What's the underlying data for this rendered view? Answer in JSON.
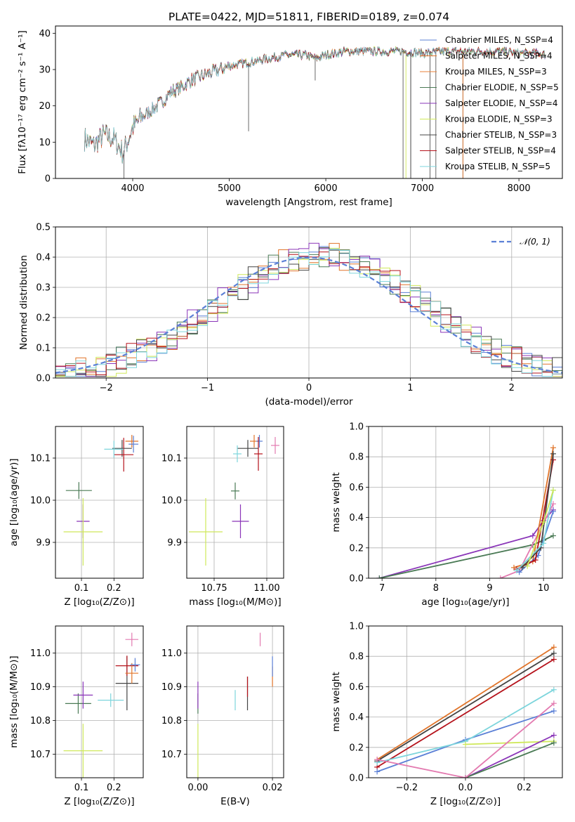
{
  "title": "PLATE=0422, MJD=51811, FIBERID=0189, z=0.074",
  "colors": {
    "chabrier_miles": "#5b80d6",
    "salpeter_miles": "#e0742a",
    "kroupa_miles": "#e8823a",
    "chabrier_elodie": "#4a7a55",
    "salpeter_elodie": "#8a35b8",
    "kroupa_elodie": "#cfe85a",
    "chabrier_stelib": "#444444",
    "salpeter_stelib": "#b5121b",
    "kroupa_stelib": "#7dd5dc",
    "extra_pink": "#e37ab0",
    "normal_curve": "#5b80d6"
  },
  "chart_data": [
    {
      "id": "spectrum",
      "type": "line",
      "title": "PLATE=0422, MJD=51811, FIBERID=0189, z=0.074",
      "xlabel": "wavelength [Angstrom, rest frame]",
      "ylabel": "Flux [fλ10⁻¹⁷ erg cm⁻² s⁻¹ A⁻¹]",
      "xlim": [
        3200,
        8450
      ],
      "ylim": [
        0,
        42
      ],
      "xticks": [
        "4000",
        "5000",
        "6000",
        "7000",
        "8000"
      ],
      "yticks": [
        "0",
        "10",
        "20",
        "30",
        "40"
      ],
      "legend_position": "top-right",
      "legend": [
        "Chabrier MILES, N_SSP=4",
        "Salpeter MILES, N_SSP=4",
        "Kroupa MILES, N_SSP=3",
        "Chabrier ELODIE, N_SSP=5",
        "Salpeter ELODIE, N_SSP=4",
        "Kroupa ELODIE, N_SSP=3",
        "Chabrier STELIB, N_SSP=3",
        "Salpeter STELIB, N_SSP=4",
        "Kroupa STELIB, N_SSP=5"
      ],
      "continuum": [
        [
          3500,
          11
        ],
        [
          3600,
          9
        ],
        [
          3700,
          12
        ],
        [
          3800,
          11
        ],
        [
          3900,
          7
        ],
        [
          4000,
          14
        ],
        [
          4100,
          17
        ],
        [
          4200,
          19
        ],
        [
          4300,
          21
        ],
        [
          4400,
          24
        ],
        [
          4500,
          25
        ],
        [
          4600,
          27
        ],
        [
          4700,
          28
        ],
        [
          4800,
          29
        ],
        [
          4900,
          30
        ],
        [
          5000,
          31
        ],
        [
          5200,
          32
        ],
        [
          5400,
          33
        ],
        [
          5600,
          34
        ],
        [
          5800,
          34
        ],
        [
          5900,
          33
        ],
        [
          6000,
          34
        ],
        [
          6200,
          35
        ],
        [
          6400,
          35
        ],
        [
          6600,
          35
        ],
        [
          6800,
          35
        ],
        [
          7000,
          34.5
        ],
        [
          7200,
          35
        ],
        [
          7500,
          35
        ],
        [
          7800,
          35
        ],
        [
          8000,
          34.5
        ],
        [
          8200,
          34.5
        ],
        [
          8280,
          34
        ]
      ],
      "spikes": [
        {
          "x": 3910,
          "y": 0
        },
        {
          "x": 5200,
          "y": 13
        },
        {
          "x": 5890,
          "y": 27
        },
        {
          "x": 6800,
          "y": 0
        },
        {
          "x": 6880,
          "y": 0
        },
        {
          "x": 7080,
          "y": 0
        },
        {
          "x": 7140,
          "y": 0
        },
        {
          "x": 7420,
          "y": 0
        }
      ]
    },
    {
      "id": "residuals",
      "type": "line",
      "xlabel": "(data-model)/error",
      "ylabel": "Normed distribution",
      "xlim": [
        -2.5,
        2.5
      ],
      "ylim": [
        0,
        0.5
      ],
      "xticks": [
        "−2",
        "−1",
        "0",
        "1",
        "2"
      ],
      "yticks": [
        "0.0",
        "0.1",
        "0.2",
        "0.3",
        "0.4",
        "0.5"
      ],
      "grid": true,
      "legend_position": "top-right",
      "legend": [
        "𝒩(0, 1)"
      ],
      "bin_width": 0.1
    },
    {
      "id": "age_vs_Z",
      "type": "scatter",
      "xlabel": "Z [log₁₀(Z/Z⊙)]",
      "ylabel": "age  [log₁₀(age/yr)]",
      "xlim": [
        0.02,
        0.29
      ],
      "ylim": [
        9.815,
        10.175
      ],
      "xticks": [
        "0.1",
        "0.2"
      ],
      "yticks": [
        "9.9",
        "10.0",
        "10.1"
      ],
      "grid": true,
      "points": [
        {
          "series": "chabrier_elodie",
          "x": 0.092,
          "y": 10.023,
          "xerr": 0.04,
          "yerr": 0.02
        },
        {
          "series": "salpeter_elodie",
          "x": 0.105,
          "y": 9.95,
          "xerr": 0.02,
          "yerr": 0.04
        },
        {
          "series": "kroupa_elodie",
          "x": 0.105,
          "y": 9.925,
          "xerr": 0.06,
          "yerr": 0.08
        },
        {
          "series": "chabrier_stelib",
          "x": 0.225,
          "y": 10.123,
          "xerr": 0.03,
          "yerr": 0.02
        },
        {
          "series": "salpeter_stelib",
          "x": 0.23,
          "y": 10.108,
          "xerr": 0.03,
          "yerr": 0.04
        },
        {
          "series": "kroupa_stelib",
          "x": 0.2,
          "y": 10.121,
          "xerr": 0.03,
          "yerr": 0.02
        },
        {
          "series": "salpeter_miles",
          "x": 0.255,
          "y": 10.14,
          "xerr": 0.02,
          "yerr": 0.015
        },
        {
          "series": "chabrier_miles",
          "x": 0.26,
          "y": 10.133,
          "xerr": 0.015,
          "yerr": 0.02
        }
      ]
    },
    {
      "id": "age_vs_mass",
      "type": "scatter",
      "xlabel": "mass [log₁₀(M/M⊙)]",
      "ylabel": "",
      "xlim": [
        10.62,
        11.08
      ],
      "ylim": [
        9.815,
        10.175
      ],
      "xticks": [
        "10.75",
        "11.00"
      ],
      "yticks": [
        "9.9",
        "10.0",
        "10.1"
      ],
      "grid": true,
      "points": [
        {
          "series": "kroupa_elodie",
          "x": 10.71,
          "y": 9.925,
          "xerr": 0.08,
          "yerr": 0.08
        },
        {
          "series": "salpeter_elodie",
          "x": 10.875,
          "y": 9.95,
          "xerr": 0.04,
          "yerr": 0.04
        },
        {
          "series": "chabrier_elodie",
          "x": 10.85,
          "y": 10.022,
          "xerr": 0.02,
          "yerr": 0.02
        },
        {
          "series": "chabrier_stelib",
          "x": 10.91,
          "y": 10.123,
          "xerr": 0.05,
          "yerr": 0.02
        },
        {
          "series": "kroupa_stelib",
          "x": 10.86,
          "y": 10.11,
          "xerr": 0.02,
          "yerr": 0.02
        },
        {
          "series": "salpeter_miles",
          "x": 10.94,
          "y": 10.14,
          "xerr": 0.02,
          "yerr": 0.015
        },
        {
          "series": "chabrier_miles",
          "x": 10.965,
          "y": 10.14,
          "xerr": 0.015,
          "yerr": 0.015
        },
        {
          "series": "salpeter_stelib",
          "x": 10.96,
          "y": 10.11,
          "xerr": 0.02,
          "yerr": 0.04
        },
        {
          "series": "extra_pink",
          "x": 11.04,
          "y": 10.13,
          "xerr": 0.02,
          "yerr": 0.02
        }
      ]
    },
    {
      "id": "weight_vs_age",
      "type": "line",
      "xlabel": "age  [log₁₀(age/yr)]",
      "ylabel": "mass weight",
      "xlim": [
        6.75,
        10.35
      ],
      "ylim": [
        0,
        1.0
      ],
      "xticks": [
        "7",
        "8",
        "9",
        "10"
      ],
      "yticks": [
        "0.0",
        "0.2",
        "0.4",
        "0.6",
        "0.8",
        "1.0"
      ],
      "grid": true,
      "series": [
        {
          "name": "salpeter_elodie",
          "points": [
            [
              6.95,
              0.0
            ],
            [
              9.8,
              0.28
            ],
            [
              10.0,
              0.38
            ],
            [
              10.18,
              0.45
            ]
          ]
        },
        {
          "name": "chabrier_elodie",
          "points": [
            [
              6.95,
              0.0
            ],
            [
              9.8,
              0.22
            ],
            [
              10.0,
              0.25
            ],
            [
              10.18,
              0.28
            ]
          ]
        },
        {
          "name": "extra_pink",
          "points": [
            [
              9.2,
              0.0
            ],
            [
              9.55,
              0.05
            ],
            [
              10.18,
              0.49
            ]
          ]
        },
        {
          "name": "salpeter_miles",
          "points": [
            [
              9.45,
              0.07
            ],
            [
              9.8,
              0.11
            ],
            [
              10.18,
              0.86
            ]
          ]
        },
        {
          "name": "chabrier_miles",
          "points": [
            [
              9.55,
              0.04
            ],
            [
              9.9,
              0.15
            ],
            [
              10.18,
              0.44
            ]
          ]
        },
        {
          "name": "salpeter_stelib",
          "points": [
            [
              9.5,
              0.06
            ],
            [
              9.85,
              0.12
            ],
            [
              10.18,
              0.78
            ]
          ]
        },
        {
          "name": "chabrier_stelib",
          "points": [
            [
              9.6,
              0.07
            ],
            [
              9.95,
              0.2
            ],
            [
              10.18,
              0.82
            ]
          ]
        },
        {
          "name": "kroupa_stelib",
          "points": [
            [
              9.5,
              0.05
            ],
            [
              10.0,
              0.23
            ],
            [
              10.18,
              0.58
            ]
          ]
        },
        {
          "name": "kroupa_elodie",
          "points": [
            [
              9.7,
              0.08
            ],
            [
              10.0,
              0.37
            ],
            [
              10.18,
              0.58
            ]
          ]
        }
      ]
    },
    {
      "id": "mass_vs_Z",
      "type": "scatter",
      "xlabel": "Z [log₁₀(Z/Z⊙)]",
      "ylabel": "mass [log₁₀(M/M⊙)]",
      "xlim": [
        0.02,
        0.29
      ],
      "ylim": [
        10.63,
        11.08
      ],
      "xticks": [
        "0.1",
        "0.2"
      ],
      "yticks": [
        "10.7",
        "10.8",
        "10.9",
        "11.0"
      ],
      "grid": true,
      "points": [
        {
          "series": "kroupa_elodie",
          "x": 0.105,
          "y": 10.71,
          "xerr": 0.06,
          "yerr": 0.08
        },
        {
          "series": "chabrier_elodie",
          "x": 0.09,
          "y": 10.85,
          "xerr": 0.04,
          "yerr": 0.03
        },
        {
          "series": "salpeter_elodie",
          "x": 0.105,
          "y": 10.875,
          "xerr": 0.03,
          "yerr": 0.04
        },
        {
          "series": "kroupa_stelib",
          "x": 0.19,
          "y": 10.86,
          "xerr": 0.04,
          "yerr": 0.02
        },
        {
          "series": "chabrier_stelib",
          "x": 0.24,
          "y": 10.91,
          "xerr": 0.035,
          "yerr": 0.08
        },
        {
          "series": "salpeter_stelib",
          "x": 0.24,
          "y": 10.962,
          "xerr": 0.035,
          "yerr": 0.03
        },
        {
          "series": "salpeter_miles",
          "x": 0.255,
          "y": 10.94,
          "xerr": 0.02,
          "yerr": 0.03
        },
        {
          "series": "chabrier_miles",
          "x": 0.265,
          "y": 10.965,
          "xerr": 0.015,
          "yerr": 0.02
        },
        {
          "series": "extra_pink",
          "x": 0.255,
          "y": 11.04,
          "xerr": 0.02,
          "yerr": 0.02
        }
      ]
    },
    {
      "id": "mass_vs_ebv",
      "type": "scatter",
      "xlabel": "E(B-V)",
      "ylabel": "",
      "xlim": [
        -0.003,
        0.023
      ],
      "ylim": [
        10.63,
        11.08
      ],
      "xticks": [
        "0.00",
        "0.02"
      ],
      "yticks": [
        "10.7",
        "10.8",
        "10.9",
        "11.0"
      ],
      "grid": true,
      "points": [
        {
          "series": "kroupa_elodie",
          "x": 0.0,
          "y": 10.71,
          "xerr": 0,
          "yerr": 0.08
        },
        {
          "series": "chabrier_elodie",
          "x": 0.0,
          "y": 10.85,
          "xerr": 0,
          "yerr": 0.03
        },
        {
          "series": "salpeter_elodie",
          "x": 0.0,
          "y": 10.875,
          "xerr": 0,
          "yerr": 0.04
        },
        {
          "series": "kroupa_stelib",
          "x": 0.01,
          "y": 10.86,
          "xerr": 0,
          "yerr": 0.03
        },
        {
          "series": "chabrier_stelib",
          "x": 0.0133,
          "y": 10.88,
          "xerr": 0,
          "yerr": 0.05
        },
        {
          "series": "salpeter_stelib",
          "x": 0.0133,
          "y": 10.9,
          "xerr": 0,
          "yerr": 0.03
        },
        {
          "series": "extra_pink",
          "x": 0.0167,
          "y": 11.04,
          "xerr": 0,
          "yerr": 0.02
        },
        {
          "series": "salpeter_miles",
          "x": 0.02,
          "y": 10.93,
          "xerr": 0,
          "yerr": 0.03
        },
        {
          "series": "chabrier_miles",
          "x": 0.02,
          "y": 10.96,
          "xerr": 0,
          "yerr": 0.03
        }
      ]
    },
    {
      "id": "weight_vs_Z",
      "type": "line",
      "xlabel": "Z [log₁₀(Z/Z⊙)]",
      "ylabel": "mass weight",
      "xlim": [
        -0.33,
        0.33
      ],
      "ylim": [
        0,
        1.0
      ],
      "xticks": [
        "−0.2",
        "0.0",
        "0.2"
      ],
      "yticks": [
        "0.0",
        "0.2",
        "0.4",
        "0.6",
        "0.8",
        "1.0"
      ],
      "grid": true,
      "series": [
        {
          "name": "salpeter_miles",
          "points": [
            [
              -0.301,
              0.12
            ],
            [
              0.301,
              0.86
            ]
          ]
        },
        {
          "name": "chabrier_stelib",
          "points": [
            [
              -0.301,
              0.11
            ],
            [
              0.301,
              0.82
            ]
          ]
        },
        {
          "name": "salpeter_stelib",
          "points": [
            [
              -0.301,
              0.07
            ],
            [
              0.301,
              0.78
            ]
          ]
        },
        {
          "name": "chabrier_miles",
          "points": [
            [
              -0.301,
              0.04
            ],
            [
              0.0,
              0.25
            ],
            [
              0.301,
              0.44
            ]
          ]
        },
        {
          "name": "kroupa_stelib",
          "points": [
            [
              -0.301,
              0.1
            ],
            [
              0.0,
              0.24
            ],
            [
              0.301,
              0.58
            ]
          ]
        },
        {
          "name": "kroupa_elodie",
          "points": [
            [
              0.0,
              0.22
            ],
            [
              0.301,
              0.24
            ]
          ]
        },
        {
          "name": "salpeter_elodie",
          "points": [
            [
              0.0,
              0.0
            ],
            [
              0.301,
              0.28
            ]
          ]
        },
        {
          "name": "chabrier_elodie",
          "points": [
            [
              0.0,
              0.0
            ],
            [
              0.301,
              0.23
            ]
          ]
        },
        {
          "name": "extra_pink",
          "points": [
            [
              -0.301,
              0.12
            ],
            [
              0.0,
              0.0
            ],
            [
              0.301,
              0.49
            ]
          ]
        }
      ]
    }
  ]
}
